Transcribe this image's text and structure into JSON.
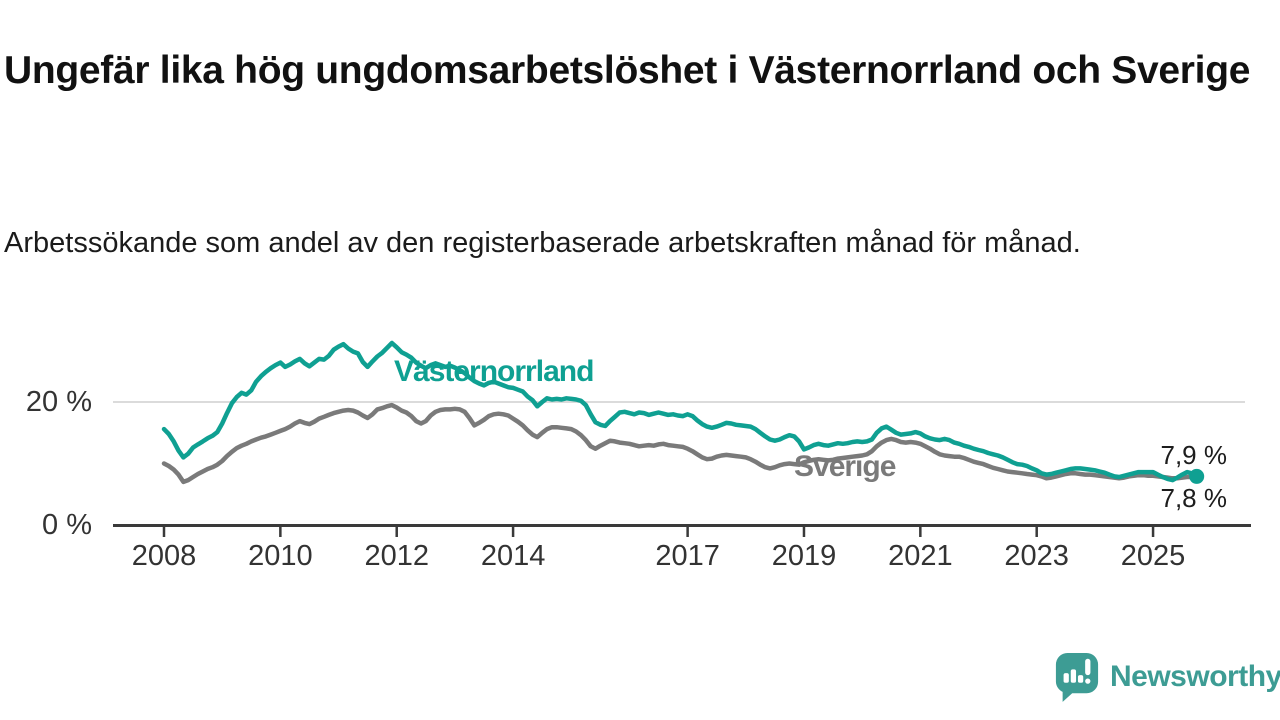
{
  "title": "Ungefär lika hög ungdomsarbetslöshet i Västernorrland och Sverige",
  "subtitle": "Arbetssökande som andel av den registerbaserade arbetskraften månad för månad.",
  "branding": {
    "name": "Newsworthy",
    "icon": "newsworthy-speech-bubble-chart-icon",
    "color": "#3d9c94"
  },
  "chart_data": {
    "type": "line",
    "unit": "%",
    "frequency": "monthly",
    "start": "2008-01",
    "end": "2025-10",
    "grid": "single horizontal gridline at 20 %",
    "legend_position": "inline labels on lines",
    "ylim": [
      0,
      31.5
    ],
    "x_tick_years": [
      2008,
      2010,
      2012,
      2014,
      2017,
      2019,
      2021,
      2023,
      2025
    ],
    "y_ticks": [
      {
        "value": 20,
        "label": "20 %",
        "gridline": true
      },
      {
        "value": 0,
        "label": "0 %",
        "gridline": false
      }
    ],
    "series": [
      {
        "name": "Västernorrland",
        "color": "#0fa092",
        "end_label": "7,9 %",
        "last_value": 7.9,
        "end_dot": true,
        "values": [
          15.6,
          14.8,
          13.6,
          12.1,
          11.0,
          11.6,
          12.6,
          13.1,
          13.6,
          14.1,
          14.5,
          15.1,
          16.5,
          18.2,
          19.8,
          20.8,
          21.5,
          21.2,
          21.9,
          23.3,
          24.2,
          24.9,
          25.5,
          26.0,
          26.4,
          25.7,
          26.1,
          26.6,
          27.0,
          26.3,
          25.8,
          26.4,
          27.0,
          26.9,
          27.5,
          28.5,
          29.0,
          29.4,
          28.7,
          28.2,
          27.9,
          26.5,
          25.7,
          26.6,
          27.4,
          28.0,
          28.8,
          29.6,
          28.9,
          28.1,
          27.7,
          27.2,
          26.4,
          25.9,
          25.5,
          26.0,
          26.3,
          26.0,
          25.7,
          25.9,
          25.6,
          25.2,
          24.7,
          24.0,
          23.4,
          23.0,
          22.7,
          23.1,
          23.3,
          23.0,
          22.7,
          22.4,
          22.3,
          22.0,
          21.7,
          20.9,
          20.3,
          19.3,
          20.0,
          20.6,
          20.4,
          20.5,
          20.4,
          20.6,
          20.5,
          20.4,
          20.2,
          19.5,
          18.0,
          16.7,
          16.3,
          16.1,
          16.9,
          17.6,
          18.3,
          18.4,
          18.2,
          18.0,
          18.3,
          18.2,
          17.9,
          18.1,
          18.3,
          18.1,
          17.9,
          18.0,
          17.8,
          17.7,
          18.0,
          17.7,
          17.0,
          16.4,
          16.0,
          15.8,
          16.0,
          16.3,
          16.6,
          16.5,
          16.3,
          16.2,
          16.1,
          16.0,
          15.6,
          15.0,
          14.4,
          13.9,
          13.7,
          13.9,
          14.3,
          14.6,
          14.4,
          13.6,
          12.3,
          12.6,
          13.0,
          13.2,
          13.0,
          12.9,
          13.1,
          13.3,
          13.2,
          13.3,
          13.5,
          13.6,
          13.5,
          13.6,
          13.9,
          15.0,
          15.7,
          16.0,
          15.5,
          15.0,
          14.7,
          14.8,
          14.9,
          15.1,
          14.9,
          14.4,
          14.1,
          13.9,
          13.8,
          14.0,
          13.8,
          13.4,
          13.2,
          12.9,
          12.7,
          12.4,
          12.2,
          12.0,
          11.7,
          11.5,
          11.3,
          11.0,
          10.6,
          10.2,
          9.9,
          9.8,
          9.6,
          9.2,
          8.9,
          8.4,
          8.2,
          8.3,
          8.5,
          8.7,
          8.9,
          9.1,
          9.2,
          9.2,
          9.1,
          9.0,
          8.9,
          8.7,
          8.5,
          8.2,
          7.9,
          7.8,
          8.0,
          8.2,
          8.4,
          8.6,
          8.6,
          8.6,
          8.6,
          8.2,
          7.8,
          7.5,
          7.3,
          7.7,
          8.2,
          8.6,
          8.4,
          7.9
        ]
      },
      {
        "name": "Sverige",
        "color": "#7a7a7a",
        "end_label": "7,8 %",
        "last_value": 7.8,
        "end_dot": false,
        "values": [
          10.0,
          9.6,
          9.0,
          8.2,
          7.0,
          7.3,
          7.8,
          8.3,
          8.7,
          9.1,
          9.4,
          9.8,
          10.4,
          11.2,
          11.9,
          12.5,
          12.9,
          13.2,
          13.6,
          13.9,
          14.2,
          14.4,
          14.7,
          15.0,
          15.3,
          15.6,
          16.0,
          16.5,
          16.9,
          16.6,
          16.4,
          16.8,
          17.3,
          17.6,
          17.9,
          18.2,
          18.4,
          18.6,
          18.7,
          18.6,
          18.3,
          17.8,
          17.4,
          18.0,
          18.8,
          19.0,
          19.3,
          19.5,
          19.1,
          18.6,
          18.3,
          17.7,
          16.9,
          16.5,
          16.9,
          17.8,
          18.4,
          18.7,
          18.8,
          18.8,
          18.9,
          18.8,
          18.4,
          17.4,
          16.2,
          16.6,
          17.1,
          17.7,
          18.0,
          18.1,
          18.0,
          17.8,
          17.3,
          16.8,
          16.2,
          15.4,
          14.7,
          14.3,
          15.0,
          15.6,
          15.9,
          15.9,
          15.8,
          15.7,
          15.6,
          15.2,
          14.6,
          13.8,
          12.8,
          12.4,
          12.9,
          13.3,
          13.7,
          13.6,
          13.4,
          13.3,
          13.2,
          13.0,
          12.8,
          12.9,
          13.0,
          12.9,
          13.1,
          13.2,
          13.0,
          12.9,
          12.8,
          12.7,
          12.4,
          12.0,
          11.5,
          11.0,
          10.7,
          10.8,
          11.1,
          11.3,
          11.4,
          11.3,
          11.2,
          11.1,
          11.0,
          10.7,
          10.3,
          9.8,
          9.4,
          9.2,
          9.4,
          9.7,
          9.9,
          10.0,
          9.9,
          9.8,
          10.2,
          10.4,
          10.6,
          10.7,
          10.6,
          10.5,
          10.6,
          10.8,
          10.9,
          11.0,
          11.1,
          11.2,
          11.3,
          11.5,
          12.0,
          12.8,
          13.4,
          13.8,
          14.0,
          13.8,
          13.5,
          13.4,
          13.5,
          13.4,
          13.2,
          12.8,
          12.4,
          11.9,
          11.5,
          11.3,
          11.2,
          11.1,
          11.1,
          10.9,
          10.6,
          10.3,
          10.1,
          9.9,
          9.6,
          9.3,
          9.1,
          8.9,
          8.7,
          8.6,
          8.5,
          8.4,
          8.3,
          8.2,
          8.1,
          7.9,
          7.6,
          7.7,
          7.9,
          8.1,
          8.3,
          8.4,
          8.4,
          8.3,
          8.2,
          8.2,
          8.1,
          8.0,
          7.9,
          7.8,
          7.7,
          7.6,
          7.7,
          7.9,
          8.0,
          8.1,
          8.1,
          8.0,
          8.0,
          7.9,
          7.8,
          7.7,
          7.6,
          7.6,
          7.7,
          7.8,
          7.8,
          7.8
        ]
      }
    ]
  }
}
